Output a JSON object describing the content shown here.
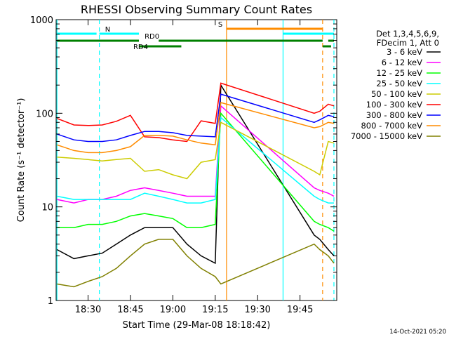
{
  "chart_data": {
    "type": "line",
    "title": "RHESSI Observing Summary Count Rates",
    "xlabel": "Start Time (29-Mar-08 18:18:42)",
    "ylabel": "Count Rate (s⁻¹ detector⁻¹)",
    "y_scale": "log",
    "ylim": [
      1,
      1000
    ],
    "xlim": [
      "18:18:42",
      "19:58:00"
    ],
    "x_tick_labels": [
      "18:30",
      "18:45",
      "19:00",
      "19:15",
      "19:30",
      "19:45"
    ],
    "y_tick_labels": [
      "1",
      "10",
      "100",
      "1000"
    ],
    "legend_header": [
      "Det 1,3,4,5,6,9,",
      "FDecim 1, Att 0"
    ],
    "legend_placement": "right",
    "footer_date": "14-Oct-2021 05:20",
    "series": [
      {
        "name": "3 - 6 keV",
        "color": "#000000",
        "x": [
          "18:19",
          "18:25",
          "18:30",
          "18:35",
          "18:40",
          "18:45",
          "18:50",
          "18:55",
          "19:00",
          "19:05",
          "19:10",
          "19:15",
          "19:17",
          "19:50",
          "19:52",
          "19:55",
          "19:57"
        ],
        "y": [
          3.5,
          2.8,
          3,
          3.2,
          4,
          5,
          6,
          6,
          6,
          4,
          3,
          2.5,
          200,
          5,
          4.5,
          3.5,
          3
        ]
      },
      {
        "name": "6 - 12 keV",
        "color": "#ff00ff",
        "x": [
          "18:19",
          "18:25",
          "18:30",
          "18:35",
          "18:40",
          "18:45",
          "18:50",
          "18:55",
          "19:00",
          "19:05",
          "19:10",
          "19:15",
          "19:17",
          "19:50",
          "19:52",
          "19:55",
          "19:57"
        ],
        "y": [
          12,
          11,
          12,
          12,
          13,
          15,
          16,
          15,
          14,
          13,
          13,
          13,
          120,
          16,
          15,
          14,
          13
        ]
      },
      {
        "name": "12 - 25 keV",
        "color": "#00ff00",
        "x": [
          "18:19",
          "18:25",
          "18:30",
          "18:35",
          "18:40",
          "18:45",
          "18:50",
          "18:55",
          "19:00",
          "19:05",
          "19:10",
          "19:15",
          "19:17",
          "19:50",
          "19:52",
          "19:55",
          "19:57"
        ],
        "y": [
          6,
          6,
          6.5,
          6.5,
          7,
          8,
          8.5,
          8,
          7.5,
          6,
          6,
          6.5,
          100,
          7,
          6.5,
          6,
          5.5
        ]
      },
      {
        "name": "25 - 50 keV",
        "color": "#00ffff",
        "x": [
          "18:19",
          "18:25",
          "18:30",
          "18:35",
          "18:40",
          "18:45",
          "18:50",
          "18:55",
          "19:00",
          "19:05",
          "19:10",
          "19:15",
          "19:17",
          "19:50",
          "19:52",
          "19:55",
          "19:57"
        ],
        "y": [
          13,
          12,
          12,
          12,
          12,
          12,
          14,
          13,
          12,
          11,
          11,
          12,
          90,
          13,
          12,
          11,
          11
        ]
      },
      {
        "name": "50 - 100 keV",
        "color": "#cccc00",
        "x": [
          "18:19",
          "18:25",
          "18:30",
          "18:35",
          "18:40",
          "18:45",
          "18:50",
          "18:55",
          "19:00",
          "19:05",
          "19:10",
          "19:15",
          "19:17",
          "19:50",
          "19:52",
          "19:55",
          "19:57"
        ],
        "y": [
          34,
          33,
          32,
          31,
          32,
          33,
          24,
          25,
          22,
          20,
          30,
          32,
          80,
          24,
          22,
          50,
          48
        ]
      },
      {
        "name": "100 - 300 keV",
        "color": "#ff0000",
        "x": [
          "18:19",
          "18:25",
          "18:30",
          "18:35",
          "18:40",
          "18:45",
          "18:50",
          "18:55",
          "19:00",
          "19:05",
          "19:10",
          "19:15",
          "19:17",
          "19:50",
          "19:52",
          "19:55",
          "19:57"
        ],
        "y": [
          88,
          75,
          74,
          75,
          82,
          95,
          56,
          55,
          52,
          50,
          83,
          78,
          210,
          100,
          105,
          125,
          120
        ]
      },
      {
        "name": "300 - 800 keV",
        "color": "#0000ff",
        "x": [
          "18:19",
          "18:25",
          "18:30",
          "18:35",
          "18:40",
          "18:45",
          "18:50",
          "18:55",
          "19:00",
          "19:05",
          "19:10",
          "19:15",
          "19:17",
          "19:50",
          "19:52",
          "19:55",
          "19:57"
        ],
        "y": [
          60,
          52,
          50,
          50,
          52,
          58,
          64,
          64,
          62,
          58,
          57,
          56,
          160,
          80,
          85,
          95,
          92
        ]
      },
      {
        "name": "800 - 7000 keV",
        "color": "#ff8c00",
        "x": [
          "18:19",
          "18:25",
          "18:30",
          "18:35",
          "18:40",
          "18:45",
          "18:50",
          "18:55",
          "19:00",
          "19:05",
          "19:10",
          "19:15",
          "19:17",
          "19:50",
          "19:52",
          "19:55",
          "19:57"
        ],
        "y": [
          46,
          40,
          38,
          38,
          40,
          44,
          58,
          58,
          57,
          52,
          48,
          46,
          130,
          70,
          72,
          80,
          78
        ]
      },
      {
        "name": "7000 - 15000 keV",
        "color": "#808000",
        "x": [
          "18:19",
          "18:25",
          "18:30",
          "18:35",
          "18:40",
          "18:45",
          "18:50",
          "18:55",
          "19:00",
          "19:05",
          "19:10",
          "19:15",
          "19:17",
          "19:50",
          "19:52",
          "19:55",
          "19:57"
        ],
        "y": [
          1.5,
          1.4,
          1.6,
          1.8,
          2.2,
          3,
          4,
          4.5,
          4.5,
          3,
          2.2,
          1.8,
          1.5,
          4,
          3.5,
          3,
          2.5
        ]
      }
    ],
    "vertical_lines": [
      {
        "time": "18:19:00",
        "color": "#00ffff",
        "style": "solid"
      },
      {
        "time": "18:34:00",
        "color": "#00ffff",
        "style": "dashed"
      },
      {
        "time": "19:19:00",
        "color": "#ff8c00",
        "style": "solid"
      },
      {
        "time": "19:39:00",
        "color": "#00ffff",
        "style": "solid"
      },
      {
        "time": "19:53:00",
        "color": "#ff8c00",
        "style": "dashed"
      },
      {
        "time": "19:57:00",
        "color": "#00ffff",
        "style": "dashed"
      }
    ],
    "flag_bars": [
      {
        "label": "N",
        "color": "#00ffff",
        "segments": [
          [
            "18:19",
            "18:33"
          ],
          [
            "18:34",
            "18:48"
          ],
          [
            "19:39",
            "19:57"
          ]
        ]
      },
      {
        "label": "S",
        "color": "#ff8c00",
        "segments": [
          [
            "19:19",
            "19:53"
          ]
        ]
      },
      {
        "label": "RD0",
        "color": "#008000",
        "segments": [
          [
            "18:19",
            "18:48"
          ],
          [
            "18:55",
            "19:39"
          ],
          [
            "19:39",
            "19:53"
          ],
          [
            "19:55",
            "19:57"
          ]
        ]
      },
      {
        "label": "RD4",
        "color": "#008000",
        "segments": [
          [
            "18:48",
            "19:03"
          ],
          [
            "19:53",
            "19:56"
          ]
        ]
      }
    ]
  }
}
